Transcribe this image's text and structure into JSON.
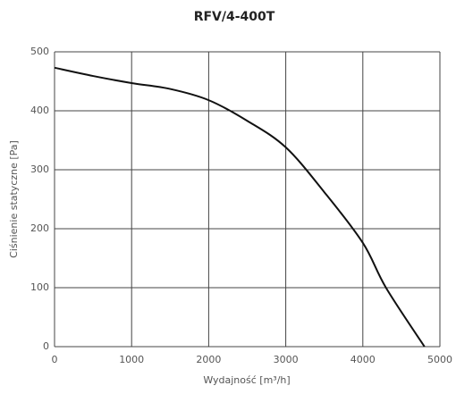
{
  "chart_data": {
    "type": "line",
    "title": "RFV/4-400T",
    "x_label": "Wydajność [m³/h]",
    "y_label": "Ciśnienie statyczne [Pa]",
    "x": [
      0,
      500,
      1000,
      1500,
      2000,
      2500,
      3000,
      3500,
      4000,
      4300,
      4800
    ],
    "series": [
      {
        "name": "RFV/4-400T",
        "color": "#111111",
        "values": [
          473,
          459,
          447,
          437,
          418,
          383,
          338,
          262,
          176,
          100,
          0
        ]
      }
    ],
    "xlim": [
      0,
      5000
    ],
    "xticks": [
      0,
      1000,
      2000,
      3000,
      4000,
      5000
    ],
    "ylim": [
      0,
      500
    ],
    "yticks": [
      0,
      100,
      200,
      300,
      400,
      500
    ],
    "grid": true
  }
}
